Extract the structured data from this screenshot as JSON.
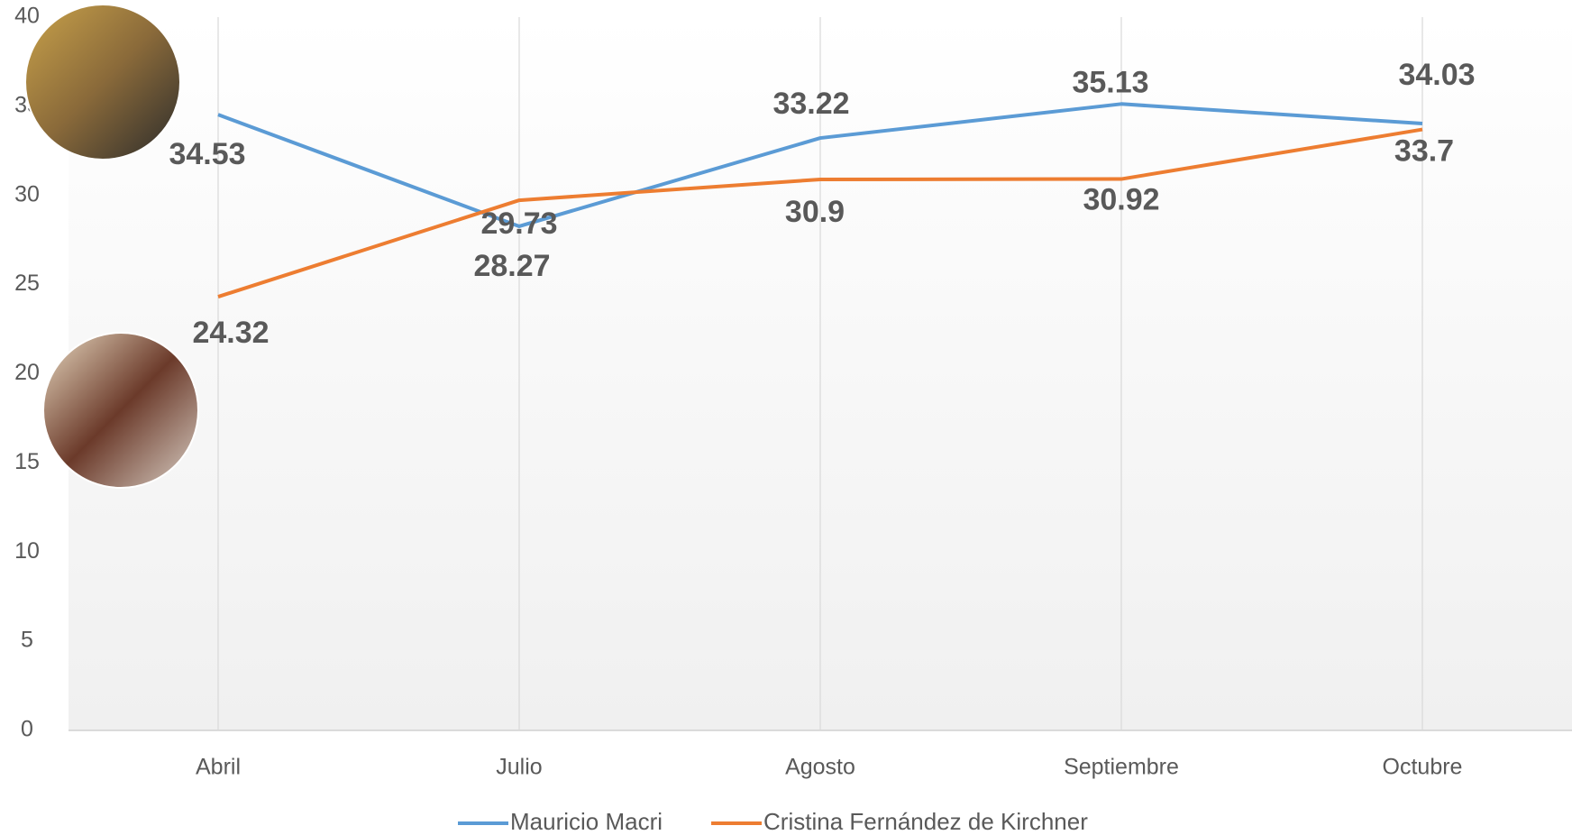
{
  "chart_data": {
    "type": "line",
    "categories": [
      "Abril",
      "Julio",
      "Agosto",
      "Septiembre",
      "Octubre"
    ],
    "series": [
      {
        "name": "Mauricio Macri",
        "color": "#5b9bd5",
        "values": [
          34.53,
          28.27,
          33.22,
          35.13,
          34.03
        ]
      },
      {
        "name": "Cristina Fernández de Kirchner",
        "color": "#ed7d31",
        "values": [
          24.32,
          29.73,
          30.9,
          30.92,
          33.7
        ]
      }
    ],
    "ylim": [
      0,
      40
    ],
    "yticks": [
      0,
      5,
      10,
      15,
      20,
      25,
      30,
      35,
      40
    ],
    "grid": true,
    "legend": "bottom"
  }
}
